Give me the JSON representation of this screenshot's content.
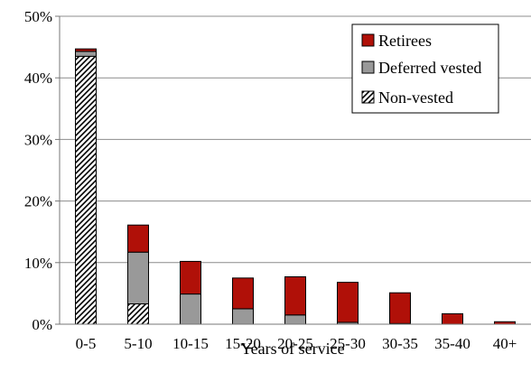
{
  "chart_data": {
    "type": "bar",
    "stacked": true,
    "title": "",
    "xlabel": "Years of service",
    "ylabel": "",
    "categories": [
      "0-5",
      "5-10",
      "10-15",
      "15-20",
      "20-25",
      "25-30",
      "30-35",
      "35-40",
      "40+"
    ],
    "ylim": [
      0,
      50
    ],
    "yticks": [
      "0%",
      "10%",
      "20%",
      "30%",
      "40%",
      "50%"
    ],
    "grid": "horizontal",
    "legend_position": "top-right",
    "series": [
      {
        "name": "Non-vested",
        "pattern": "diagonal-hatch",
        "color": "#000000",
        "values": [
          43.5,
          3.3,
          0,
          0,
          0,
          0,
          0,
          0,
          0
        ]
      },
      {
        "name": "Deferred vested",
        "color": "#999999",
        "values": [
          0.8,
          8.4,
          4.9,
          2.5,
          1.5,
          0.3,
          0.1,
          0,
          0
        ]
      },
      {
        "name": "Retirees",
        "color": "#b01008",
        "values": [
          0.4,
          4.4,
          5.3,
          5.0,
          6.2,
          6.5,
          5.0,
          1.7,
          0.4
        ]
      }
    ]
  },
  "legend": {
    "items": [
      {
        "label": "Retirees",
        "key": "retirees"
      },
      {
        "label": "Deferred vested",
        "key": "deferred"
      },
      {
        "label": "Non-vested",
        "key": "nonvested"
      }
    ]
  }
}
